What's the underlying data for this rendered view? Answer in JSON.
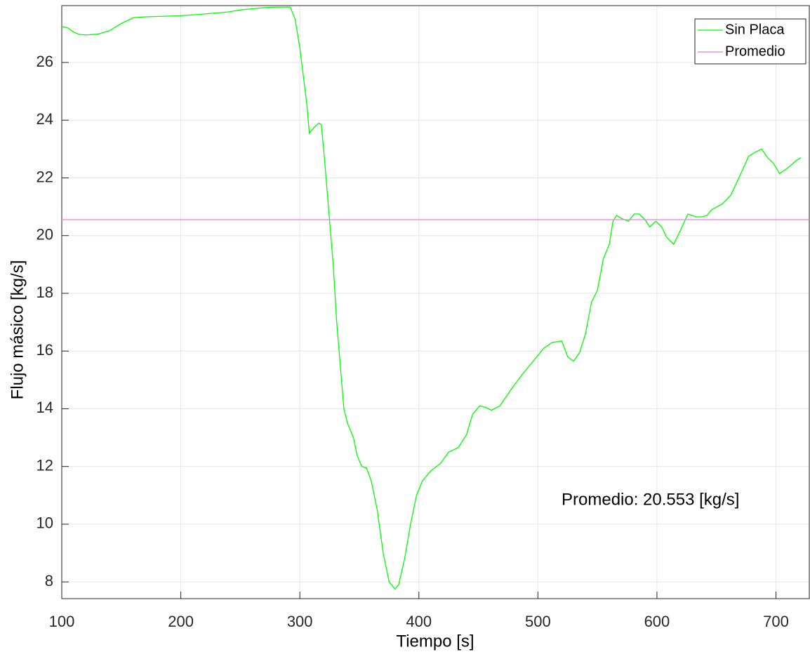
{
  "chart_data": {
    "type": "line",
    "x_label": "Tiempo [s]",
    "y_label": "Flujo másico [kg/s]",
    "annotation": "Promedio: 20.553 [kg/s]",
    "xlim": [
      100,
      728
    ],
    "ylim": [
      7.42,
      27.97
    ],
    "xticks": [
      100,
      200,
      300,
      400,
      500,
      600,
      700
    ],
    "yticks": [
      8,
      10,
      12,
      14,
      16,
      18,
      20,
      22,
      24,
      26
    ],
    "grid": true,
    "legend_position": "upper-right",
    "series": [
      {
        "name": "Sin Placa",
        "color": "#00ff00",
        "x": [
          100,
          105,
          110,
          115,
          120,
          130,
          140,
          150,
          160,
          170,
          200,
          220,
          240,
          250,
          260,
          270,
          280,
          292,
          296,
          300,
          303,
          306,
          308,
          312,
          316,
          318,
          320,
          322,
          325,
          328,
          331,
          334,
          337,
          340,
          345,
          348,
          352,
          356,
          360,
          365,
          370,
          375,
          380,
          383,
          388,
          393,
          398,
          403,
          410,
          418,
          425,
          433,
          440,
          445,
          451,
          456,
          461,
          468,
          478,
          487,
          497,
          505,
          512,
          520,
          525,
          530,
          535,
          540,
          545,
          550,
          555,
          560,
          563,
          566,
          570,
          576,
          581,
          585,
          590,
          594,
          599,
          604,
          608,
          614,
          620,
          626,
          633,
          638,
          642,
          646,
          655,
          662,
          670,
          677,
          683,
          688,
          693,
          698,
          703,
          710,
          717,
          721
        ],
        "values": [
          27.25,
          27.2,
          27.05,
          26.97,
          26.95,
          26.98,
          27.1,
          27.35,
          27.55,
          27.58,
          27.62,
          27.68,
          27.75,
          27.82,
          27.86,
          27.9,
          27.92,
          27.92,
          27.5,
          26.5,
          25.5,
          24.5,
          23.55,
          23.75,
          23.9,
          23.85,
          23,
          22,
          20.5,
          19,
          17,
          15.5,
          14,
          13.5,
          13,
          12.4,
          12,
          11.95,
          11.5,
          10.5,
          9,
          8,
          7.75,
          7.9,
          8.8,
          10,
          11,
          11.5,
          11.85,
          12.1,
          12.5,
          12.65,
          13.1,
          13.8,
          14.1,
          14.05,
          13.95,
          14.1,
          14.7,
          15.2,
          15.7,
          16.1,
          16.3,
          16.35,
          15.8,
          15.65,
          15.95,
          16.6,
          17.7,
          18.1,
          19.2,
          19.7,
          20.5,
          20.7,
          20.6,
          20.5,
          20.75,
          20.75,
          20.55,
          20.3,
          20.5,
          20.3,
          19.95,
          19.7,
          20.2,
          20.75,
          20.65,
          20.65,
          20.7,
          20.9,
          21.1,
          21.4,
          22.1,
          22.75,
          22.9,
          23,
          22.7,
          22.5,
          22.15,
          22.35,
          22.6,
          22.7
        ]
      },
      {
        "name": "Promedio",
        "color": "#e87de8",
        "x": [
          100,
          728
        ],
        "values": [
          20.553,
          20.553
        ]
      }
    ]
  }
}
